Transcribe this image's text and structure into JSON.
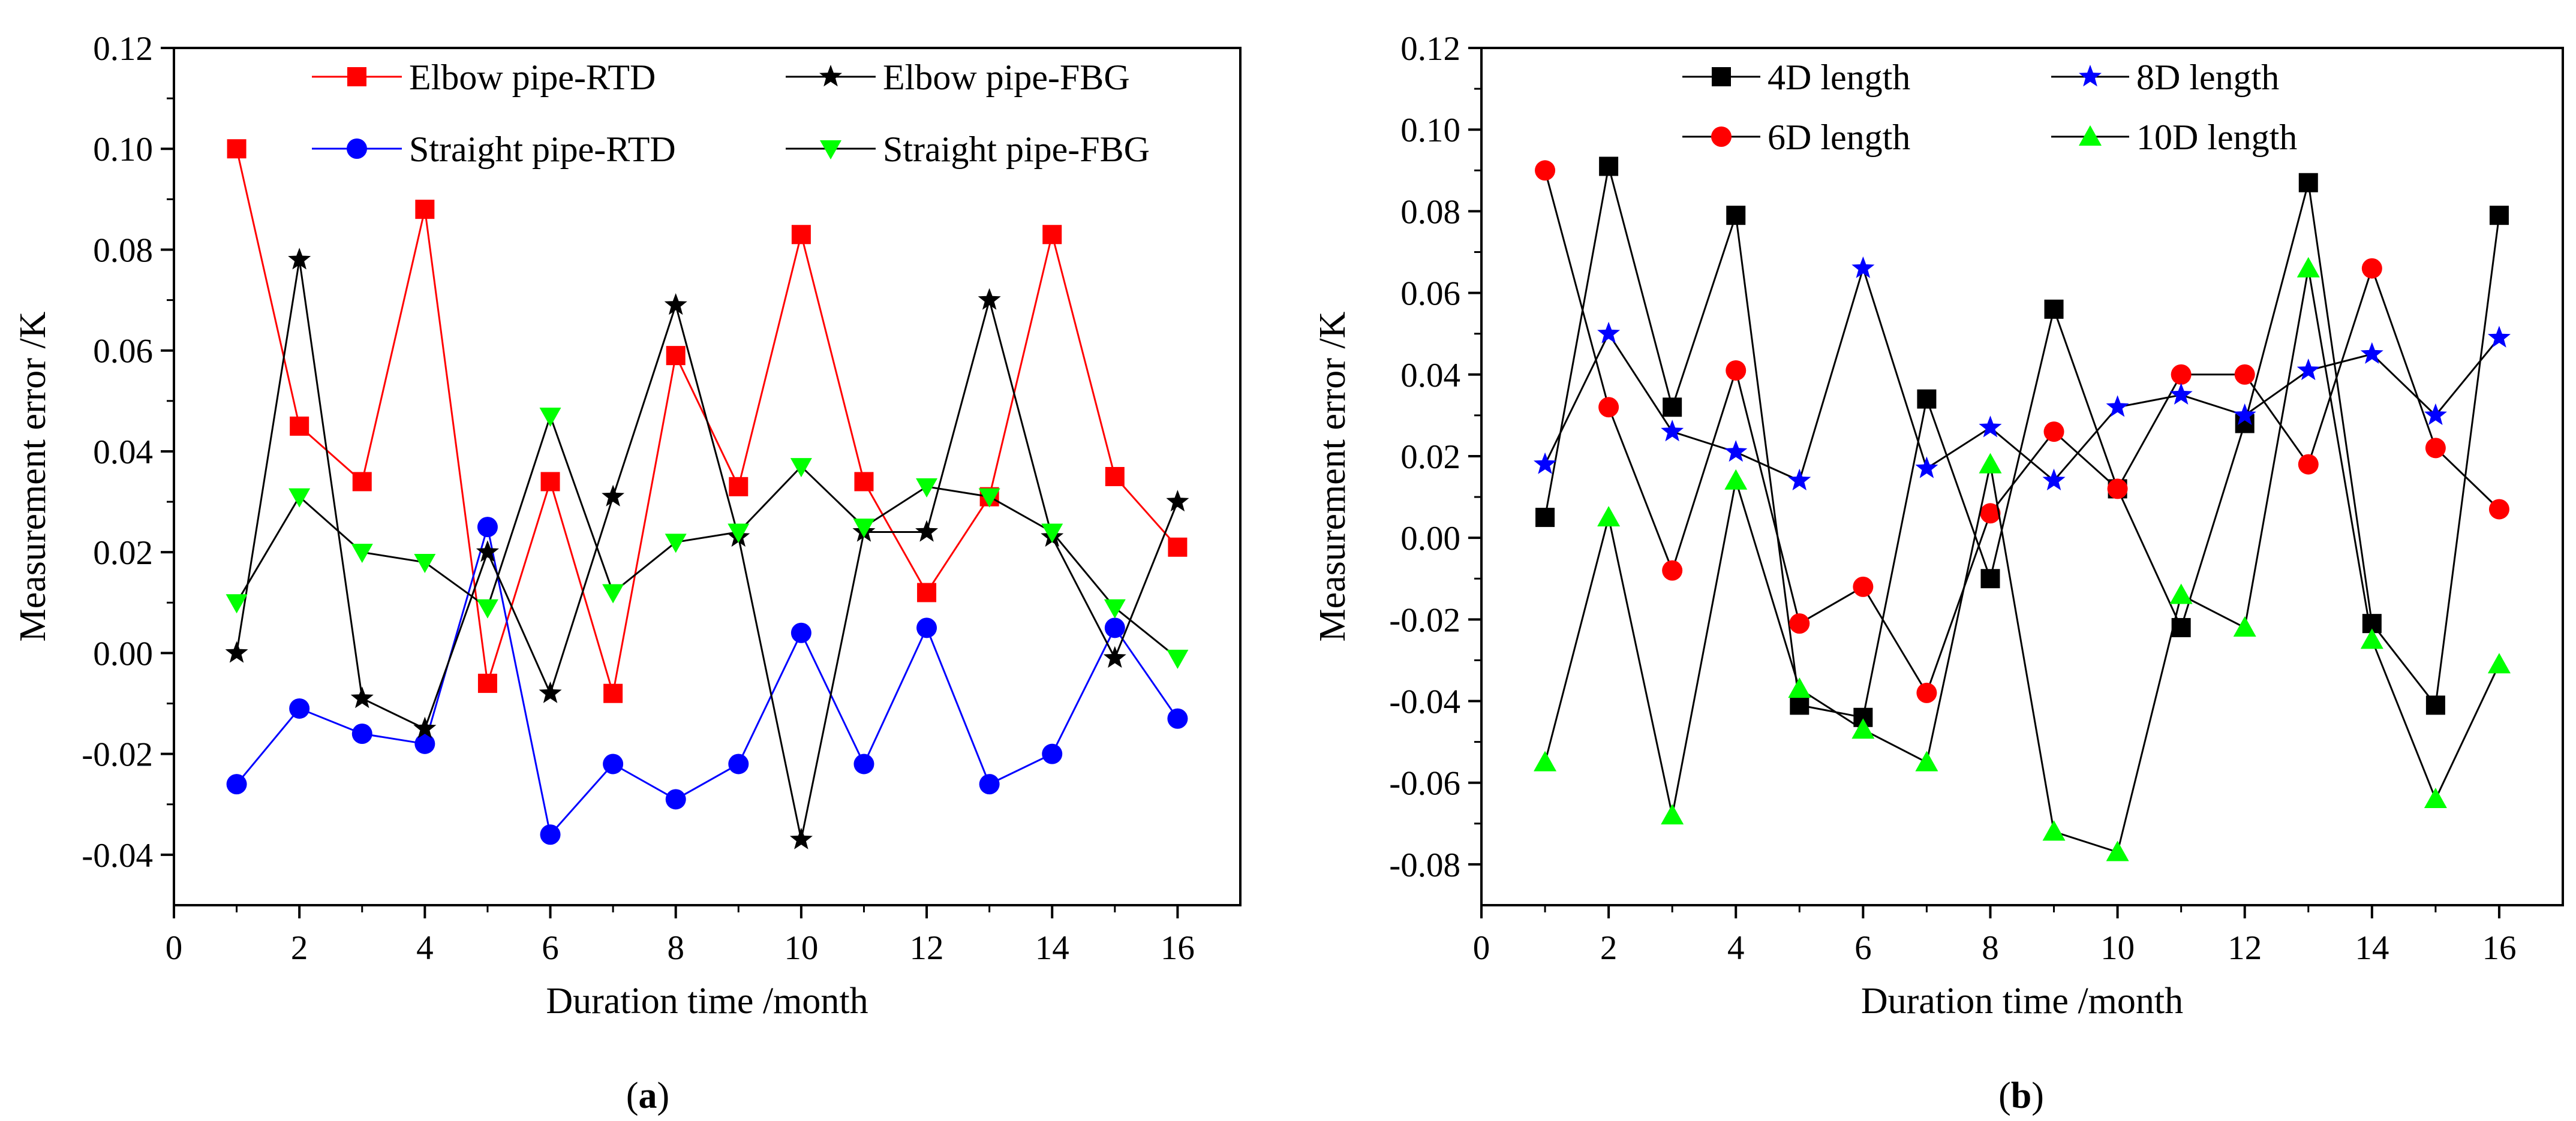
{
  "chart_data": [
    {
      "type": "line",
      "panel_label": "a",
      "xlabel": "Duration time /month",
      "ylabel": "Measurement error /K",
      "xlim": [
        0,
        17
      ],
      "ylim": [
        -0.05,
        0.12
      ],
      "xticks": [
        0,
        2,
        4,
        6,
        8,
        10,
        12,
        14,
        16
      ],
      "xtick_labels": [
        "0",
        "2",
        "4",
        "6",
        "8",
        "10",
        "12",
        "14",
        "16"
      ],
      "yticks": [
        -0.04,
        -0.02,
        0.0,
        0.02,
        0.04,
        0.06,
        0.08,
        0.1,
        0.12
      ],
      "ytick_labels": [
        "-0.04",
        "-0.02",
        "0.00",
        "0.02",
        "0.04",
        "0.06",
        "0.08",
        "0.10",
        "0.12"
      ],
      "x": [
        1,
        2,
        3,
        4,
        5,
        6,
        7,
        8,
        9,
        10,
        11,
        12,
        13,
        14,
        15,
        16
      ],
      "legend_columns": 2,
      "series": [
        {
          "name": "Elbow pipe-RTD",
          "marker": "square",
          "color": "#ff0000",
          "line_color": "#ff0000",
          "values": [
            0.1,
            0.045,
            0.034,
            0.088,
            -0.006,
            0.034,
            -0.008,
            0.059,
            0.033,
            0.083,
            0.034,
            0.012,
            0.031,
            0.083,
            0.035,
            0.021
          ]
        },
        {
          "name": "Straight pipe-RTD",
          "marker": "circle",
          "color": "#0000ff",
          "line_color": "#0000ff",
          "values": [
            -0.026,
            -0.011,
            -0.016,
            -0.018,
            0.025,
            -0.036,
            -0.022,
            -0.029,
            -0.022,
            0.004,
            -0.022,
            0.005,
            -0.026,
            -0.02,
            0.005,
            -0.013
          ]
        },
        {
          "name": "Elbow pipe-FBG",
          "marker": "star",
          "color": "#000000",
          "line_color": "#000000",
          "values": [
            0.0,
            0.078,
            -0.009,
            -0.015,
            0.02,
            -0.008,
            0.031,
            0.069,
            0.023,
            -0.037,
            0.024,
            0.024,
            0.07,
            0.023,
            -0.001,
            0.03
          ]
        },
        {
          "name": "Straight pipe-FBG",
          "marker": "triangle-down",
          "color": "#00ff00",
          "line_color": "#000000",
          "values": [
            0.01,
            0.031,
            0.02,
            0.018,
            0.009,
            0.047,
            0.012,
            0.022,
            0.024,
            0.037,
            0.025,
            0.033,
            0.031,
            0.024,
            0.009,
            -0.001
          ]
        }
      ]
    },
    {
      "type": "line",
      "panel_label": "b",
      "xlabel": "Duration time /month",
      "ylabel": "Measurement error /K",
      "xlim": [
        0,
        17
      ],
      "ylim": [
        -0.09,
        0.12
      ],
      "xticks": [
        0,
        2,
        4,
        6,
        8,
        10,
        12,
        14,
        16
      ],
      "xtick_labels": [
        "0",
        "2",
        "4",
        "6",
        "8",
        "10",
        "12",
        "14",
        "16"
      ],
      "yticks": [
        -0.08,
        -0.06,
        -0.04,
        -0.02,
        0.0,
        0.02,
        0.04,
        0.06,
        0.08,
        0.1,
        0.12
      ],
      "ytick_labels": [
        "-0.08",
        "-0.06",
        "-0.04",
        "-0.02",
        "0.00",
        "0.02",
        "0.04",
        "0.06",
        "0.08",
        "0.10",
        "0.12"
      ],
      "x": [
        1,
        2,
        3,
        4,
        5,
        6,
        7,
        8,
        9,
        10,
        11,
        12,
        13,
        14,
        15,
        16
      ],
      "legend_columns": 2,
      "series": [
        {
          "name": "4D length",
          "marker": "square",
          "color": "#000000",
          "line_color": "#000000",
          "values": [
            0.005,
            0.091,
            0.032,
            0.079,
            -0.041,
            -0.044,
            0.034,
            -0.01,
            0.056,
            0.012,
            -0.022,
            0.028,
            0.087,
            -0.021,
            -0.041,
            0.079
          ]
        },
        {
          "name": "6D length",
          "marker": "circle",
          "color": "#ff0000",
          "line_color": "#000000",
          "values": [
            0.09,
            0.032,
            -0.008,
            0.041,
            -0.021,
            -0.012,
            -0.038,
            0.006,
            0.026,
            0.012,
            0.04,
            0.04,
            0.018,
            0.066,
            0.022,
            0.007
          ]
        },
        {
          "name": "8D length",
          "marker": "star",
          "color": "#0000ff",
          "line_color": "#000000",
          "values": [
            0.018,
            0.05,
            0.026,
            0.021,
            0.014,
            0.066,
            0.017,
            0.027,
            0.014,
            0.032,
            0.035,
            0.03,
            0.041,
            0.045,
            0.03,
            0.049
          ]
        },
        {
          "name": "10D length",
          "marker": "triangle-up",
          "color": "#00ff00",
          "line_color": "#000000",
          "values": [
            -0.055,
            0.005,
            -0.068,
            0.014,
            -0.037,
            -0.047,
            -0.055,
            0.018,
            -0.072,
            -0.077,
            -0.014,
            -0.022,
            0.066,
            -0.025,
            -0.064,
            -0.031
          ]
        }
      ]
    }
  ]
}
